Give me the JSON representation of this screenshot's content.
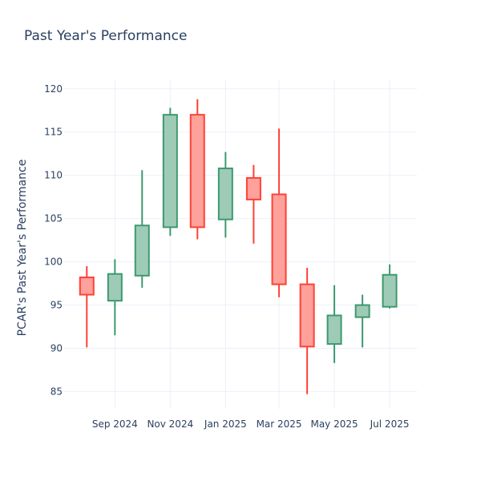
{
  "chart_data": {
    "type": "candlestick",
    "title": "Past Year's Performance",
    "ylabel": "PCAR's Past Year's Performance",
    "xlabel": "",
    "ylim": [
      83,
      121
    ],
    "yticks": [
      85,
      90,
      95,
      100,
      105,
      110,
      115,
      120
    ],
    "xlim": [
      "2024-07-07",
      "2025-07-31"
    ],
    "xticks": [
      {
        "date": "2024-09-01",
        "label": "Sep 2024"
      },
      {
        "date": "2024-11-01",
        "label": "Nov 2024"
      },
      {
        "date": "2025-01-01",
        "label": "Jan 2025"
      },
      {
        "date": "2025-03-01",
        "label": "Mar 2025"
      },
      {
        "date": "2025-05-01",
        "label": "May 2025"
      },
      {
        "date": "2025-07-01",
        "label": "Jul 2025"
      }
    ],
    "grid": true,
    "colors": {
      "increasing_line": "#3d9970",
      "increasing_fill": "#9ecbb6",
      "decreasing_line": "#ff4136",
      "decreasing_fill": "#ffa19b",
      "grid": "#ebf0f8",
      "text": "#2a3f5f"
    },
    "candles": [
      {
        "date": "2024-08-01",
        "open": 98.2,
        "high": 99.5,
        "low": 90.1,
        "close": 96.2
      },
      {
        "date": "2024-09-01",
        "open": 95.5,
        "high": 100.3,
        "low": 91.5,
        "close": 98.6
      },
      {
        "date": "2024-10-01",
        "open": 98.4,
        "high": 110.6,
        "low": 97.0,
        "close": 104.2
      },
      {
        "date": "2024-11-01",
        "open": 104.0,
        "high": 117.8,
        "low": 103.0,
        "close": 117.0
      },
      {
        "date": "2024-12-01",
        "open": 117.0,
        "high": 118.8,
        "low": 102.6,
        "close": 104.0
      },
      {
        "date": "2025-01-01",
        "open": 104.9,
        "high": 112.7,
        "low": 102.8,
        "close": 110.8
      },
      {
        "date": "2025-02-01",
        "open": 109.7,
        "high": 111.2,
        "low": 102.1,
        "close": 107.2
      },
      {
        "date": "2025-03-01",
        "open": 107.8,
        "high": 115.4,
        "low": 95.9,
        "close": 97.4
      },
      {
        "date": "2025-04-01",
        "open": 97.4,
        "high": 99.3,
        "low": 84.7,
        "close": 90.2
      },
      {
        "date": "2025-05-01",
        "open": 90.5,
        "high": 97.3,
        "low": 88.3,
        "close": 93.8
      },
      {
        "date": "2025-06-01",
        "open": 93.6,
        "high": 96.2,
        "low": 90.1,
        "close": 95.0
      },
      {
        "date": "2025-07-01",
        "open": 94.8,
        "high": 99.7,
        "low": 94.6,
        "close": 98.5
      }
    ]
  }
}
